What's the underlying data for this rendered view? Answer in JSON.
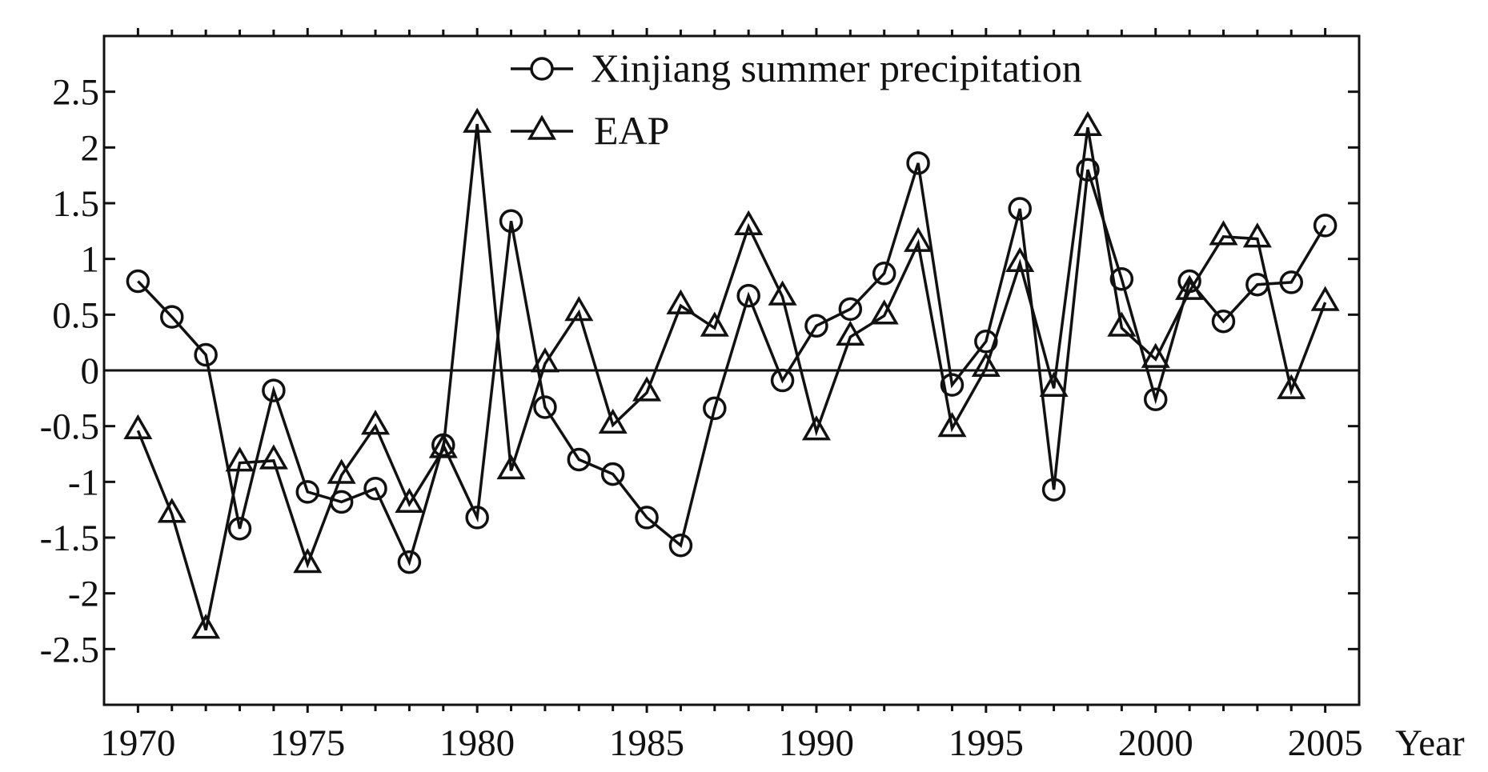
{
  "chart_data": {
    "type": "line",
    "title": "",
    "xlabel": "Year",
    "ylabel": "",
    "xlim": [
      1969,
      2006
    ],
    "ylim": [
      -3,
      3
    ],
    "x_ticks": [
      1970,
      1975,
      1980,
      1985,
      1990,
      1995,
      2000,
      2005
    ],
    "y_ticks": [
      2.5,
      2,
      1.5,
      1,
      0.5,
      0,
      -0.5,
      -1,
      -1.5,
      -2,
      -2.5
    ],
    "y_tick_labels": [
      "2.5",
      "2",
      "1.5",
      "1",
      "0.5",
      "0",
      "-0.5",
      "-1",
      "-1.5",
      "-2",
      "-2.5"
    ],
    "grid": false,
    "zero_line": true,
    "legend_position": "top-center",
    "line_color": "#111111",
    "x": [
      1970,
      1971,
      1972,
      1973,
      1974,
      1975,
      1976,
      1977,
      1978,
      1979,
      1980,
      1981,
      1982,
      1983,
      1984,
      1985,
      1986,
      1987,
      1988,
      1989,
      1990,
      1991,
      1992,
      1993,
      1994,
      1995,
      1996,
      1997,
      1998,
      1999,
      2000,
      2001,
      2002,
      2003,
      2004,
      2005
    ],
    "series": [
      {
        "name": "Xinjiang summer precipitation",
        "marker": "circle",
        "values": [
          0.8,
          0.48,
          0.14,
          -1.42,
          -0.18,
          -1.09,
          -1.18,
          -1.06,
          -1.72,
          -0.67,
          -1.32,
          1.34,
          -0.33,
          -0.8,
          -0.93,
          -1.32,
          -1.57,
          -0.34,
          0.67,
          -0.09,
          0.4,
          0.55,
          0.87,
          1.86,
          -0.13,
          0.26,
          1.45,
          -1.07,
          1.8,
          0.82,
          -0.26,
          0.8,
          0.44,
          0.77,
          0.79,
          1.3
        ]
      },
      {
        "name": "EAP",
        "marker": "triangle",
        "values": [
          -0.54,
          -1.29,
          -2.33,
          -0.83,
          -0.81,
          -1.74,
          -0.94,
          -0.5,
          -1.2,
          -0.71,
          2.21,
          -0.9,
          0.06,
          0.52,
          -0.49,
          -0.2,
          0.58,
          0.38,
          1.29,
          0.66,
          -0.55,
          0.3,
          0.49,
          1.14,
          -0.52,
          0.02,
          0.96,
          -0.16,
          2.18,
          0.38,
          0.1,
          0.71,
          1.2,
          1.18,
          -0.18,
          0.61
        ]
      }
    ]
  }
}
